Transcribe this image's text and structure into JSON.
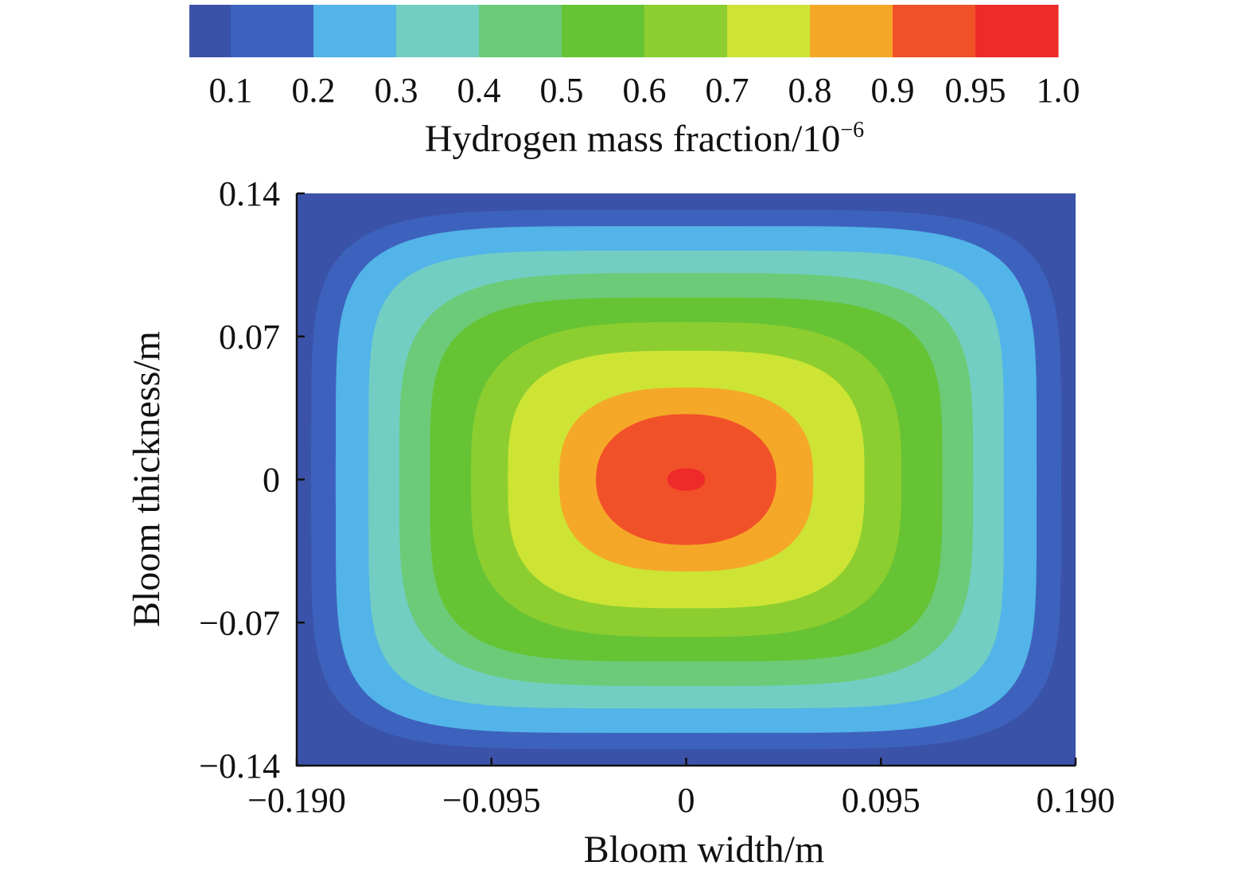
{
  "chart_data": {
    "type": "heatmap",
    "subtype": "filled-contour",
    "xlabel": "Bloom width/m",
    "ylabel": "Bloom thickness/m",
    "xlim": [
      -0.19,
      0.19
    ],
    "ylim": [
      -0.14,
      0.14
    ],
    "x_ticks": [
      -0.19,
      -0.095,
      0,
      0.095,
      0.19
    ],
    "x_tick_labels": [
      "−0.190",
      "−0.095",
      "0",
      "0.095",
      "0.190"
    ],
    "y_ticks": [
      -0.14,
      -0.07,
      0,
      0.07,
      0.14
    ],
    "y_tick_labels": [
      "−0.14",
      "−0.07",
      "0",
      "0.07",
      "0.14"
    ],
    "colorbar": {
      "title_text": "Hydrogen mass fraction/10",
      "title_exponent": "−6",
      "placement": "top",
      "levels": [
        0.1,
        0.2,
        0.3,
        0.4,
        0.5,
        0.6,
        0.7,
        0.8,
        0.9,
        0.95,
        1.0
      ],
      "level_labels": [
        "0.1",
        "0.2",
        "0.3",
        "0.4",
        "0.5",
        "0.6",
        "0.7",
        "0.8",
        "0.9",
        "0.95",
        "1.0"
      ],
      "colors": [
        "#3a52a8",
        "#3d62bd",
        "#52b4e8",
        "#72cec2",
        "#6ccb78",
        "#66c334",
        "#8cce30",
        "#cde434",
        "#f5a828",
        "#f15128",
        "#ee2a2a"
      ]
    },
    "peak": {
      "x": 0,
      "y": 0,
      "value": 1.0
    },
    "contour_half_widths": [
      {
        "value": 0.95,
        "x": 0.0092,
        "y": 0.0055
      },
      {
        "value": 0.9,
        "x": 0.044,
        "y": 0.032
      },
      {
        "value": 0.8,
        "x": 0.062,
        "y": 0.045
      },
      {
        "value": 0.7,
        "x": 0.087,
        "y": 0.063
      },
      {
        "value": 0.6,
        "x": 0.105,
        "y": 0.077
      },
      {
        "value": 0.5,
        "x": 0.125,
        "y": 0.089
      },
      {
        "value": 0.4,
        "x": 0.14,
        "y": 0.101
      },
      {
        "value": 0.3,
        "x": 0.155,
        "y": 0.112
      },
      {
        "value": 0.2,
        "x": 0.171,
        "y": 0.124
      },
      {
        "value": 0.1,
        "x": 0.183,
        "y": 0.132
      }
    ]
  }
}
